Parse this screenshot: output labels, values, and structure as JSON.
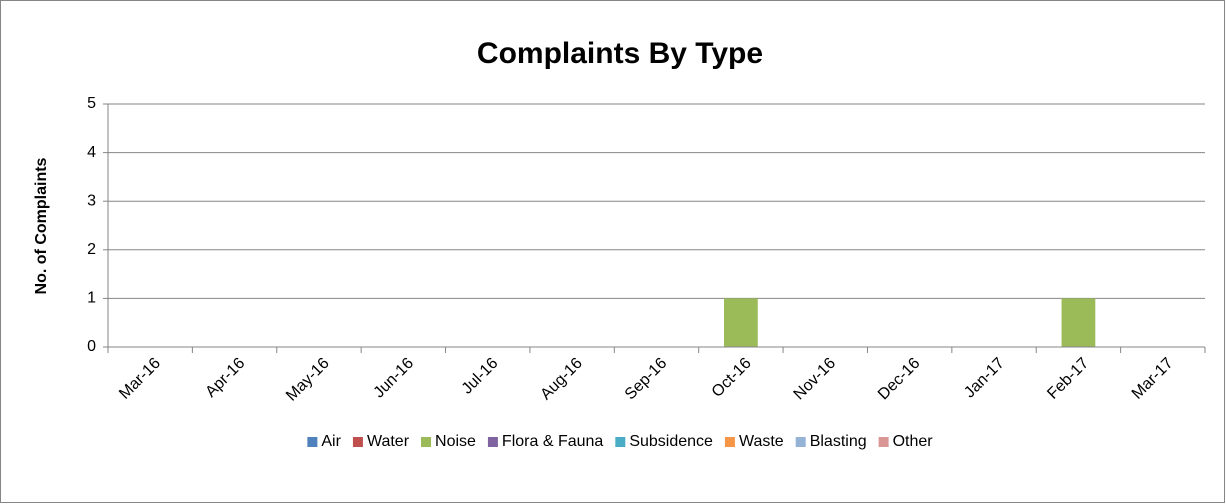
{
  "chart_data": {
    "type": "bar",
    "stacked": true,
    "title": "Complaints By Type",
    "ylabel": "No. of Complaints",
    "categories": [
      "Mar-16",
      "Apr-16",
      "May-16",
      "Jun-16",
      "Jul-16",
      "Aug-16",
      "Sep-16",
      "Oct-16",
      "Nov-16",
      "Dec-16",
      "Jan-17",
      "Feb-17",
      "Mar-17"
    ],
    "series": [
      {
        "name": "Air",
        "color": "#4f81bd",
        "values": [
          0,
          0,
          0,
          0,
          0,
          0,
          0,
          0,
          0,
          0,
          0,
          0,
          0
        ]
      },
      {
        "name": "Water",
        "color": "#c0504d",
        "values": [
          0,
          0,
          0,
          0,
          0,
          0,
          0,
          0,
          0,
          0,
          0,
          0,
          0
        ]
      },
      {
        "name": "Noise",
        "color": "#9bbb59",
        "values": [
          0,
          0,
          0,
          0,
          0,
          0,
          0,
          1,
          0,
          0,
          0,
          1,
          0
        ]
      },
      {
        "name": "Flora & Fauna",
        "color": "#8064a2",
        "values": [
          0,
          0,
          0,
          0,
          0,
          0,
          0,
          0,
          0,
          0,
          0,
          0,
          0
        ]
      },
      {
        "name": "Subsidence",
        "color": "#4bacc6",
        "values": [
          0,
          0,
          0,
          0,
          0,
          0,
          0,
          0,
          0,
          0,
          0,
          0,
          0
        ]
      },
      {
        "name": "Waste",
        "color": "#f79646",
        "values": [
          0,
          0,
          0,
          0,
          0,
          0,
          0,
          0,
          0,
          0,
          0,
          0,
          0
        ]
      },
      {
        "name": "Blasting",
        "color": "#95b3d7",
        "values": [
          0,
          0,
          0,
          0,
          0,
          0,
          0,
          0,
          0,
          0,
          0,
          0,
          0
        ]
      },
      {
        "name": "Other",
        "color": "#d99694",
        "values": [
          0,
          0,
          0,
          0,
          0,
          0,
          0,
          0,
          0,
          0,
          0,
          0,
          0
        ]
      }
    ],
    "ylim": [
      0,
      5
    ],
    "yticks": [
      0,
      1,
      2,
      3,
      4,
      5
    ],
    "grid": true,
    "legend": "bottom"
  }
}
